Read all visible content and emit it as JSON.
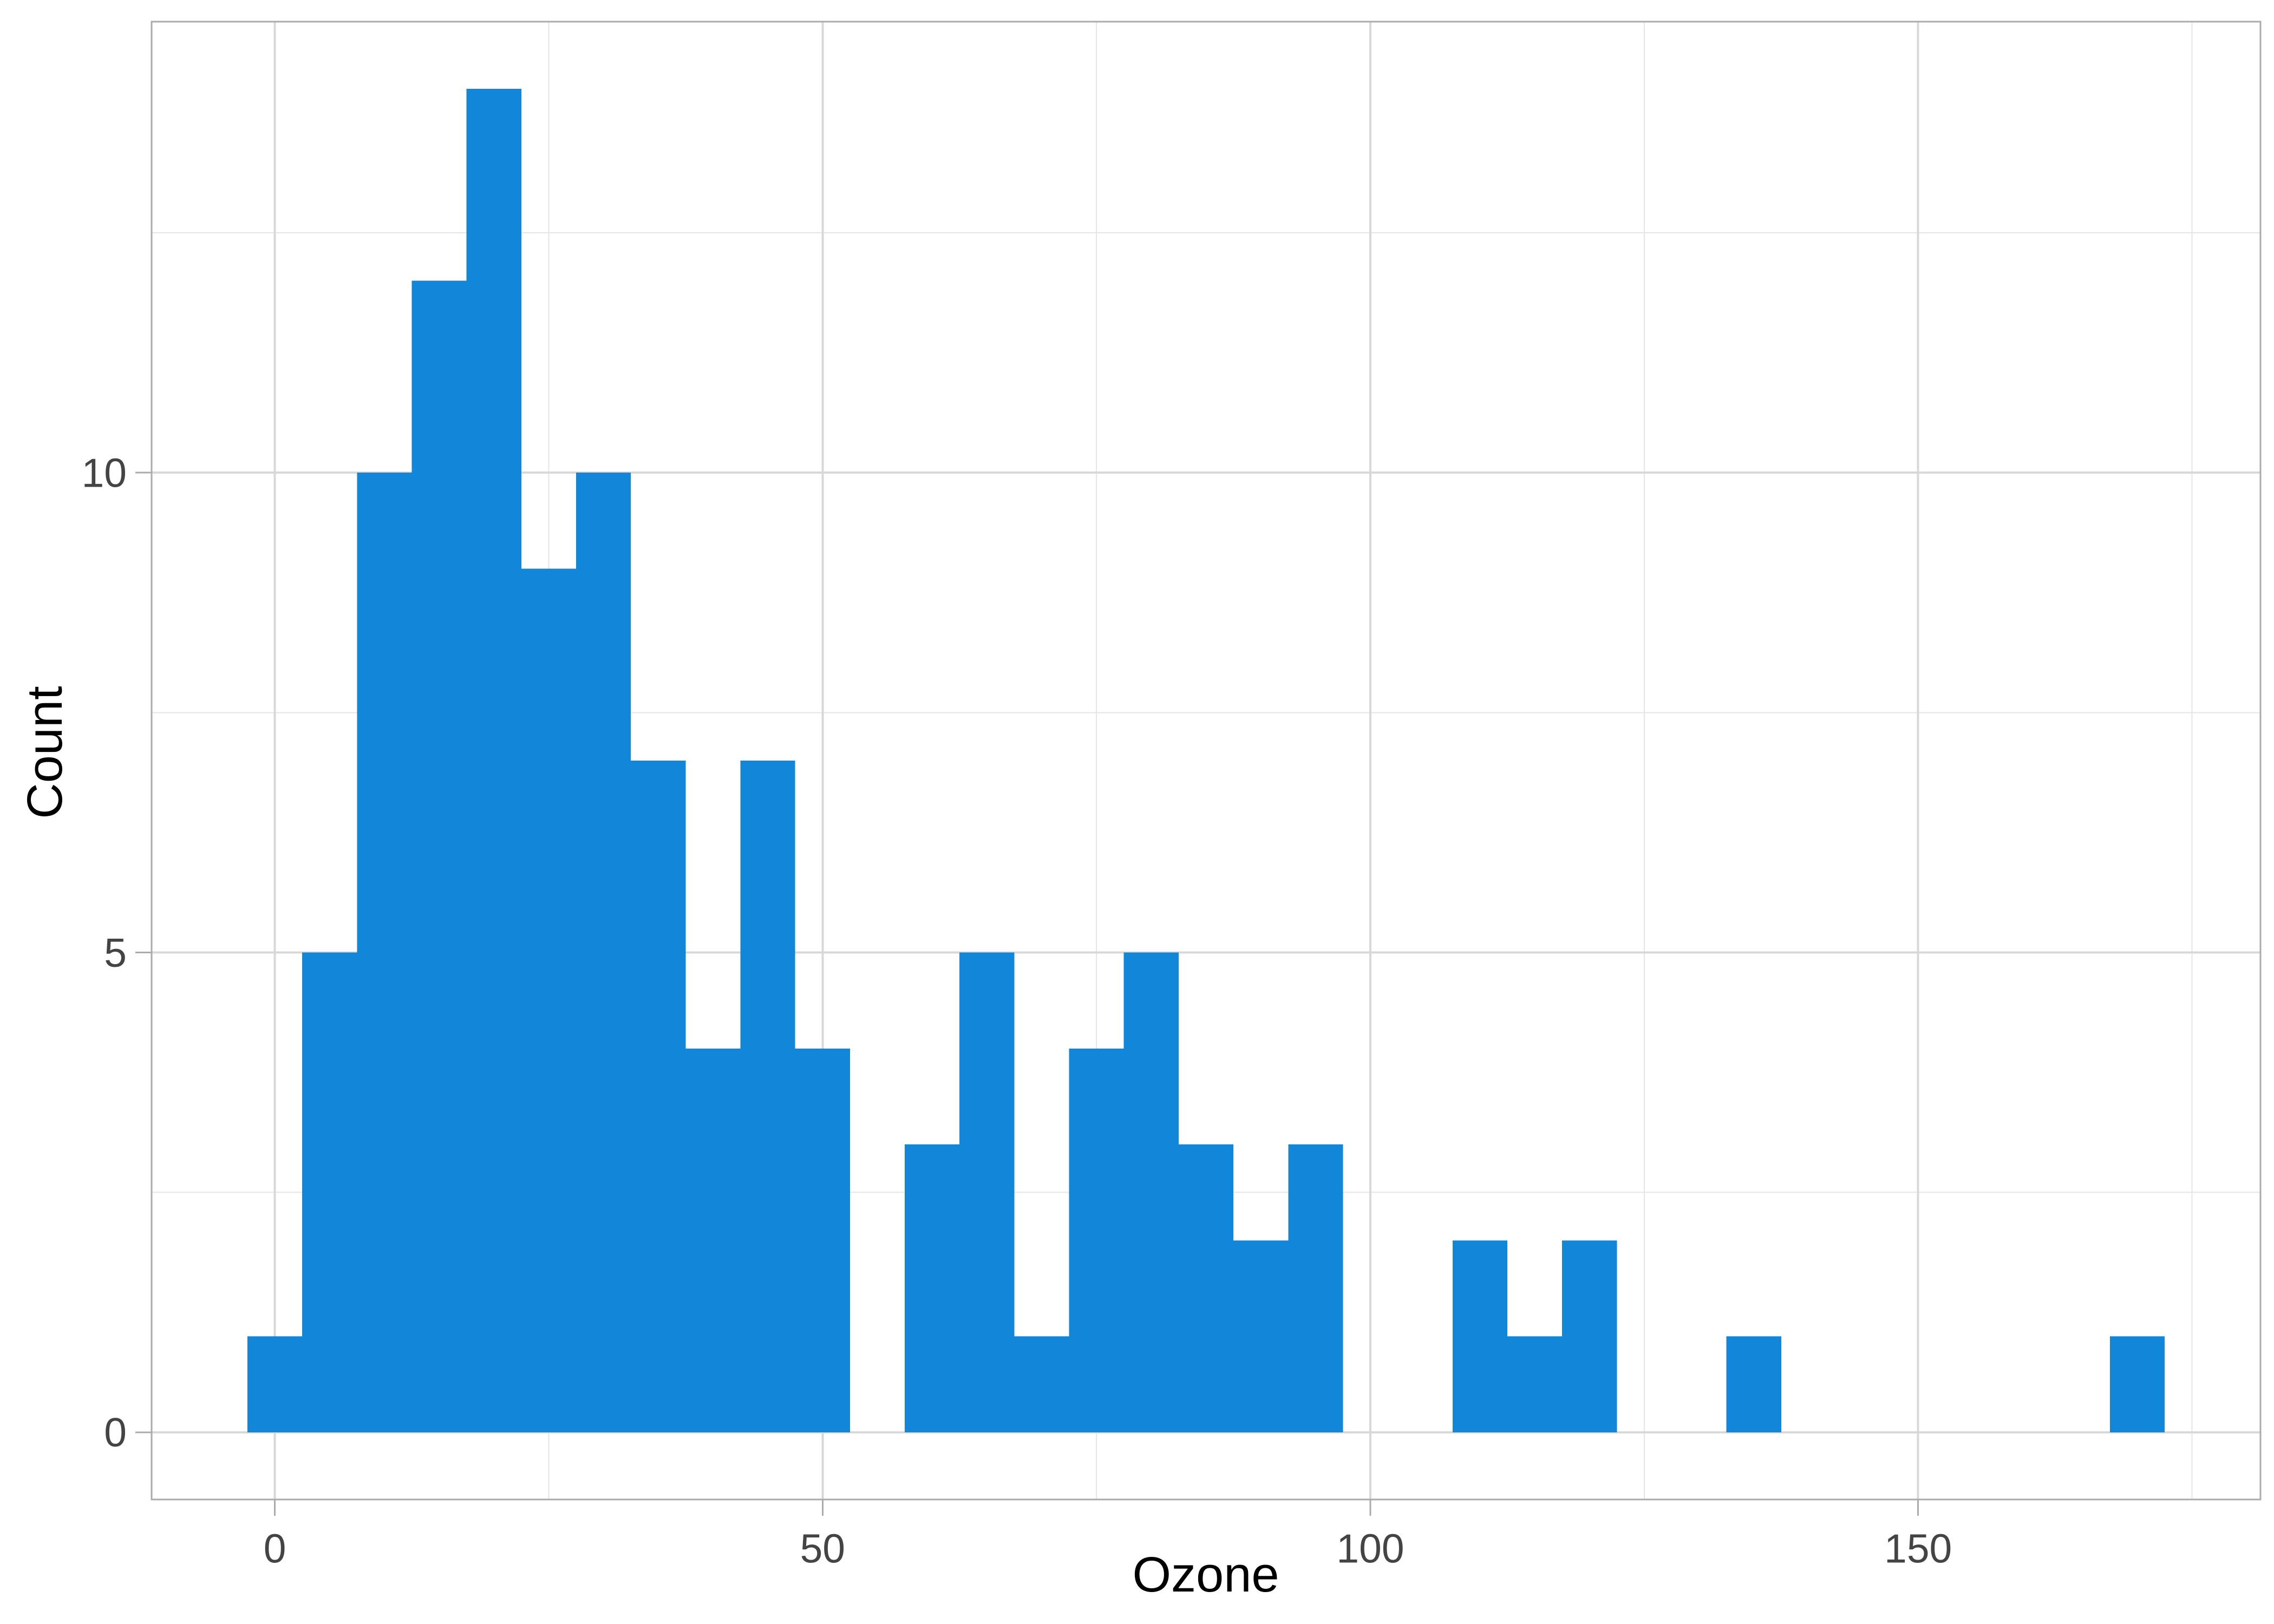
{
  "chart_data": {
    "type": "bar",
    "subtype": "histogram",
    "title": "",
    "xlabel": "Ozone",
    "ylabel": "Count",
    "binwidth": 5,
    "bin_centers": [
      0,
      5,
      10,
      15,
      20,
      25,
      30,
      35,
      40,
      45,
      50,
      55,
      60,
      65,
      70,
      75,
      80,
      85,
      90,
      95,
      100,
      105,
      110,
      115,
      120,
      125,
      130,
      135,
      140,
      145,
      150,
      155,
      160,
      165,
      170
    ],
    "counts": [
      1,
      5,
      10,
      12,
      14,
      9,
      10,
      7,
      4,
      7,
      4,
      0,
      3,
      5,
      1,
      4,
      5,
      3,
      2,
      3,
      0,
      0,
      2,
      1,
      2,
      0,
      0,
      1,
      0,
      0,
      0,
      0,
      0,
      0,
      1
    ],
    "xlim": [
      -11.25,
      181.25
    ],
    "ylim": [
      -0.7,
      14.7
    ],
    "x_ticks": [
      0,
      50,
      100,
      150
    ],
    "x_tick_labels": [
      "0",
      "50",
      "100",
      "150"
    ],
    "y_ticks": [
      0,
      5,
      10
    ],
    "y_tick_labels": [
      "0",
      "5",
      "10"
    ],
    "x_minor_gridlines": [
      25,
      75,
      125,
      175
    ],
    "y_minor_gridlines": [
      2.5,
      7.5,
      12.5
    ],
    "grid": "major+minor",
    "legend": "none",
    "style": {
      "bar_color": "#1286D8",
      "panel_background": "#FFFFFF",
      "figure_background": "#FFFFFF",
      "panel_border_color": "#ABABAB",
      "tick_color": "#ABABAB",
      "major_grid_color": "#D8D8D8",
      "minor_grid_color": "#E5E5E5",
      "tick_label_color": "#444444",
      "axis_title_color": "#000000"
    }
  }
}
